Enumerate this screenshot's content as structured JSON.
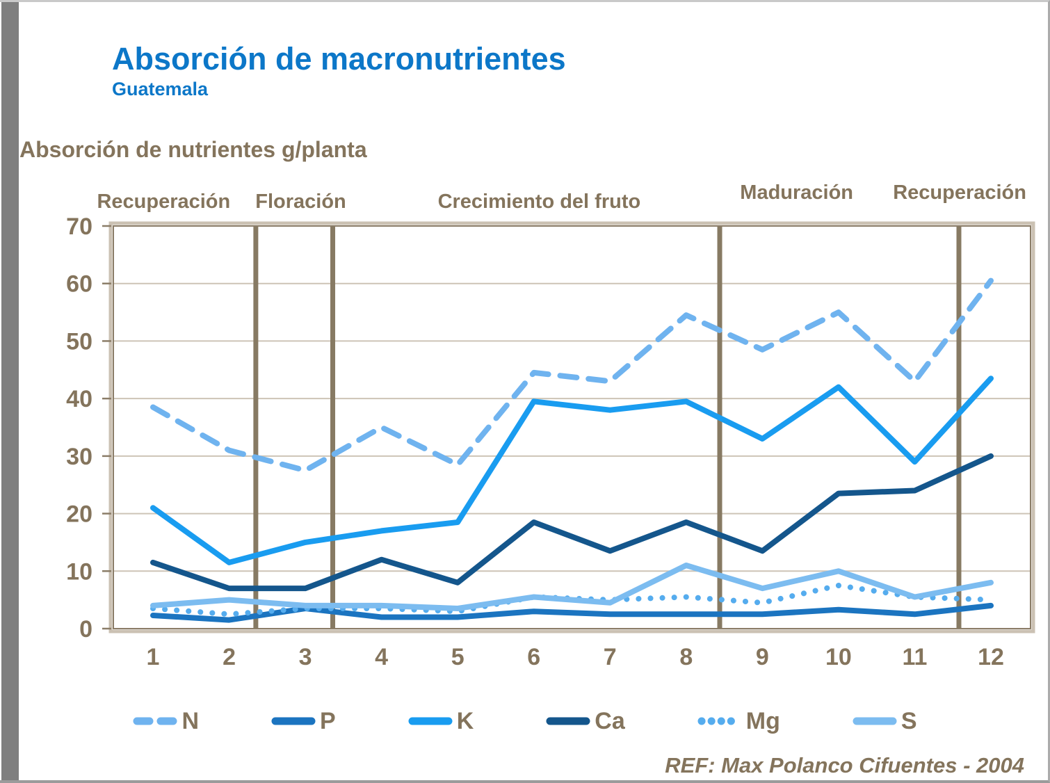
{
  "header": {
    "title": "Absorción de macronutrientes",
    "subtitle": "Guatemala"
  },
  "axis_title": "Absorción de nutrientes g/planta",
  "ref_text": "REF: Max Polanco Cifuentes - 2004",
  "colors": {
    "title_blue": "#0c77c8",
    "text_brown": "#84745c",
    "grid": "#cdc4b6",
    "frame_tan": "#cbc1b3",
    "frame_dark": "#8b7d68",
    "phase_divider": "#877a63",
    "side_strip": "#7f7f7f"
  },
  "chart_data": {
    "type": "line",
    "title": "Absorción de nutrientes g/planta",
    "xlabel": "",
    "ylabel": "g/planta",
    "categories": [
      1,
      2,
      3,
      4,
      5,
      6,
      7,
      8,
      9,
      10,
      11,
      12
    ],
    "ylim": [
      0,
      70
    ],
    "yticks": [
      0,
      10,
      20,
      30,
      40,
      50,
      60,
      70
    ],
    "grid": true,
    "legend_position": "bottom",
    "phases": [
      {
        "label": "Recuperación",
        "center_month": 1.14
      },
      {
        "label": "Floración",
        "center_month": 2.94
      },
      {
        "label": "Crecimiento del fruto",
        "center_month": 6.07
      },
      {
        "label": "Maduración",
        "center_month": 9.45
      },
      {
        "label": "Recuperación",
        "center_month": 11.59
      }
    ],
    "phase_dividers_month": [
      2.35,
      3.36,
      8.44,
      11.58
    ],
    "series": [
      {
        "name": "N",
        "style": "dashed",
        "color": "#6fb3ef",
        "values": [
          38.5,
          31,
          27.5,
          35,
          28.5,
          44.5,
          43,
          54.5,
          48.5,
          55,
          43,
          60.5
        ]
      },
      {
        "name": "P",
        "style": "solid",
        "color": "#1b74c0",
        "values": [
          2.3,
          1.5,
          3.5,
          2,
          2,
          3,
          2.5,
          2.5,
          2.5,
          3.3,
          2.5,
          4
        ]
      },
      {
        "name": "K",
        "style": "solid",
        "color": "#199cf0",
        "values": [
          21,
          11.5,
          15,
          17,
          18.5,
          39.5,
          38,
          39.5,
          33,
          42,
          29,
          43.5
        ]
      },
      {
        "name": "Ca",
        "style": "solid",
        "color": "#14568c",
        "values": [
          11.5,
          7,
          7,
          12,
          8,
          18.5,
          13.5,
          18.5,
          13.5,
          23.5,
          24,
          30
        ]
      },
      {
        "name": "Mg",
        "style": "dotted",
        "color": "#55acee",
        "values": [
          3.5,
          2.5,
          3.5,
          3.5,
          3,
          5.5,
          5,
          5.5,
          4.5,
          7.5,
          5.5,
          5
        ]
      },
      {
        "name": "S",
        "style": "solid",
        "color": "#7cbcf0",
        "values": [
          4,
          5,
          4,
          4,
          3.5,
          5.5,
          4.5,
          11,
          7,
          10,
          5.5,
          8
        ]
      }
    ]
  }
}
